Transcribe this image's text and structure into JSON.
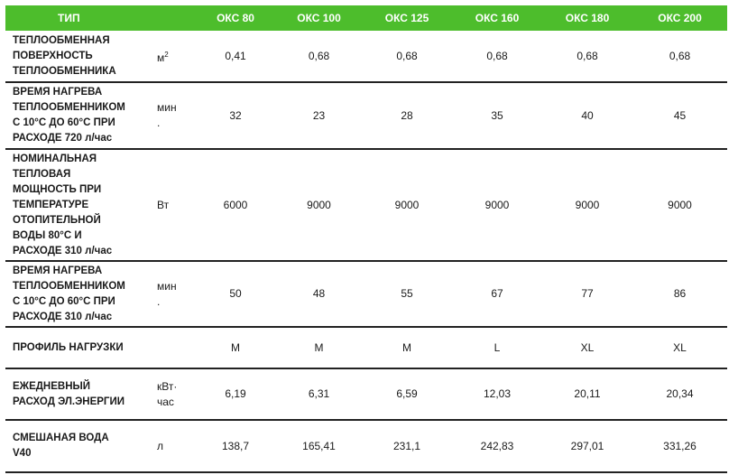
{
  "table": {
    "header": {
      "label": "ТИП",
      "models": [
        "ОКС 80",
        "ОКС 100",
        "ОКС 125",
        "ОКС 160",
        "ОКС 180",
        "ОКС 200"
      ]
    },
    "rows": [
      {
        "param": "ТЕПЛООБМЕННАЯ\nПОВЕРХНОСТЬ\nТЕПЛООБМЕННИКА",
        "unit": "м",
        "unit_sup": "2",
        "values": [
          "0,41",
          "0,68",
          "0,68",
          "0,68",
          "0,68",
          "0,68"
        ]
      },
      {
        "param": "ВРЕМЯ НАГРЕВА\nТЕПЛООБМЕННИКОМ\nС 10°С ДО 60°С ПРИ\nРАСХОДЕ 720 л/час",
        "unit": "мин\n.",
        "unit_sup": "",
        "values": [
          "32",
          "23",
          "28",
          "35",
          "40",
          "45"
        ]
      },
      {
        "param": "НОМИНАЛЬНАЯ\nТЕПЛОВАЯ\nМОЩНОСТЬ ПРИ\nТЕМПЕРАТУРЕ\nОТОПИТЕЛЬНОЙ\nВОДЫ 80°С И\nРАСХОДЕ 310 л/час",
        "unit": "Вт",
        "unit_sup": "",
        "values": [
          "6000",
          "9000",
          "9000",
          "9000",
          "9000",
          "9000"
        ]
      },
      {
        "param": "ВРЕМЯ НАГРЕВА\nТЕПЛООБМЕННИКОМ\nС 10°С ДО 60°С ПРИ\nРАСХОДЕ 310 л/час",
        "unit": "мин\n.",
        "unit_sup": "",
        "values": [
          "50",
          "48",
          "55",
          "67",
          "77",
          "86"
        ]
      },
      {
        "param": "ПРОФИЛЬ НАГРУЗКИ",
        "unit": "",
        "unit_sup": "",
        "values": [
          "M",
          "M",
          "M",
          "L",
          "XL",
          "XL"
        ]
      },
      {
        "param": "ЕЖЕДНЕВНЫЙ\nРАСХОД ЭЛ.ЭНЕРГИИ",
        "unit": "кВт·\nчас",
        "unit_sup": "",
        "values": [
          "6,19",
          "6,31",
          "6,59",
          "12,03",
          "20,11",
          "20,34"
        ]
      },
      {
        "param": "СМЕШАНАЯ ВОДА\nV40",
        "unit": "л",
        "unit_sup": "",
        "values": [
          "138,7",
          "165,41",
          "231,1",
          "242,83",
          "297,01",
          "331,26"
        ]
      }
    ]
  },
  "colors": {
    "header_bg": "#4dbd2c",
    "header_text": "#ffffff",
    "rule": "#222222"
  }
}
